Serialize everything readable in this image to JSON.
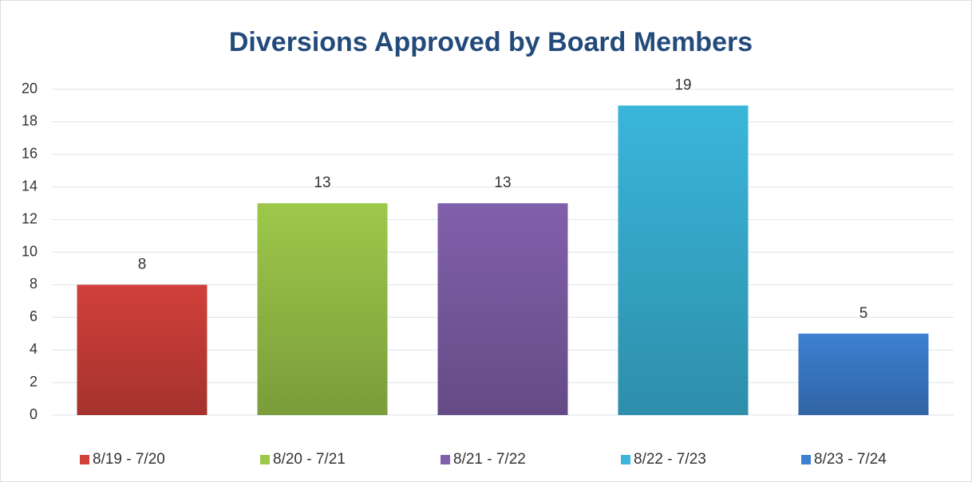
{
  "chart_data": {
    "type": "bar",
    "title": "Diversions Approved by Board Members",
    "categories": [
      "8/19 - 7/20",
      "8/20 - 7/21",
      "8/21 - 7/22",
      "8/22 - 7/23",
      "8/23 - 7/24"
    ],
    "values": [
      8,
      13,
      13,
      19,
      5
    ],
    "colors": [
      "#d2403a",
      "#9dc84a",
      "#8160ab",
      "#3ab6da",
      "#3d80d2"
    ],
    "ylim": [
      0,
      20
    ],
    "yticks": [
      0,
      2,
      4,
      6,
      8,
      10,
      12,
      14,
      16,
      18,
      20
    ],
    "grid": true,
    "legend": "bottom"
  }
}
